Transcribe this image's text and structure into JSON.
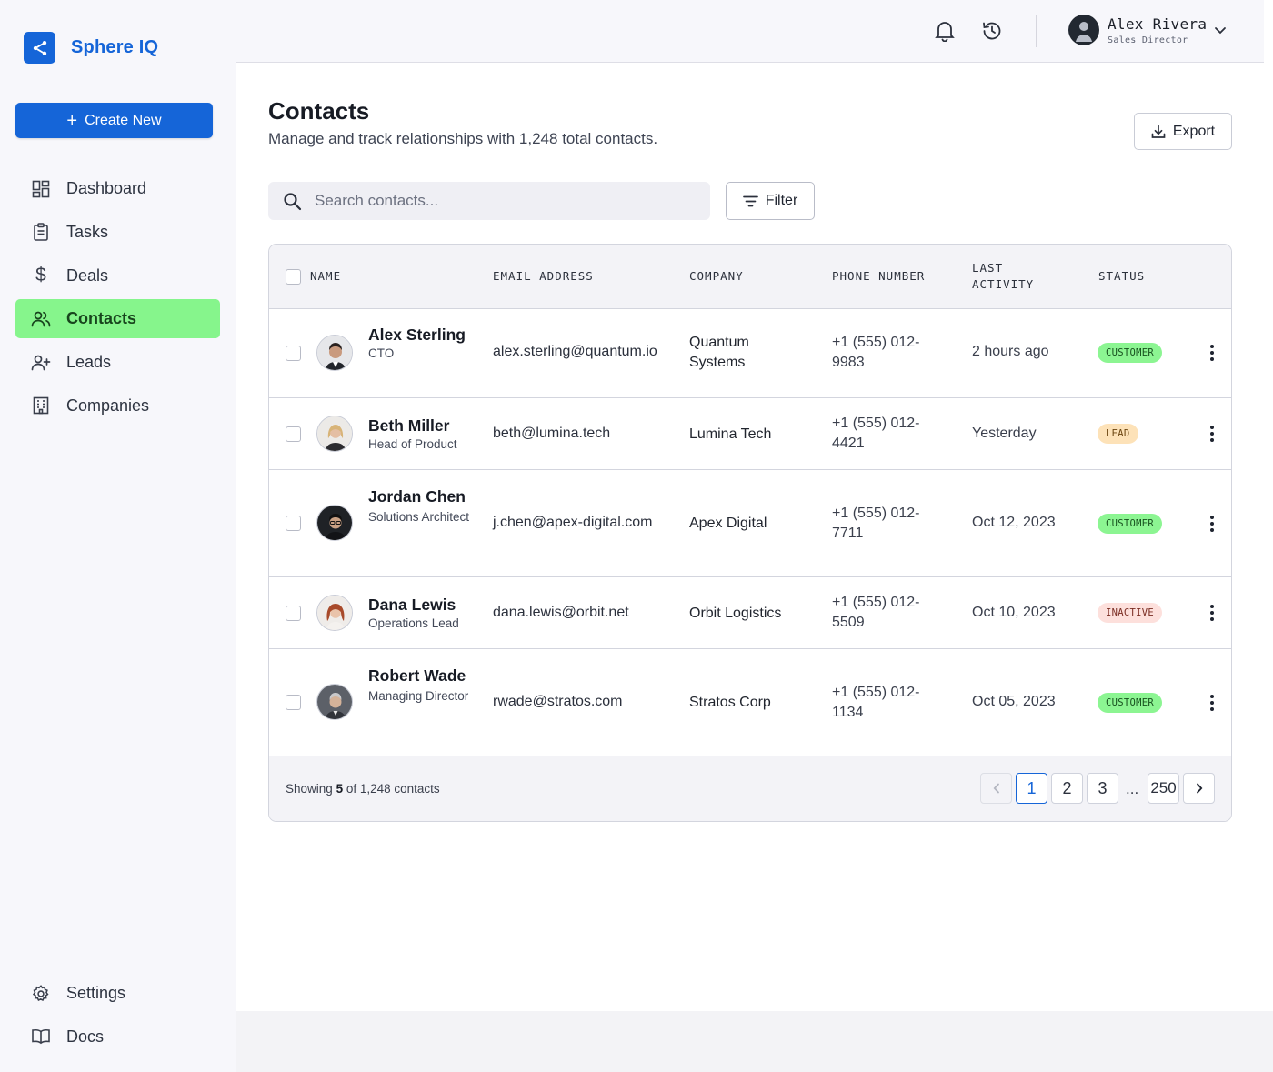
{
  "brand": {
    "name": "Sphere IQ",
    "logo_icon": "share-icon",
    "accent": "#1565d8"
  },
  "sidebar": {
    "create_label": "Create New",
    "items": [
      {
        "label": "Dashboard",
        "icon": "dashboard-icon",
        "active": false
      },
      {
        "label": "Tasks",
        "icon": "clipboard-icon",
        "active": false
      },
      {
        "label": "Deals",
        "icon": "dollar-icon",
        "active": false
      },
      {
        "label": "Contacts",
        "icon": "users-icon",
        "active": true
      },
      {
        "label": "Leads",
        "icon": "user-plus-icon",
        "active": false
      },
      {
        "label": "Companies",
        "icon": "building-icon",
        "active": false
      }
    ],
    "bottom_items": [
      {
        "label": "Settings",
        "icon": "gear-icon"
      },
      {
        "label": "Docs",
        "icon": "book-icon"
      }
    ],
    "active_color": "#86f58c"
  },
  "header": {
    "user_name": "Alex Rivera",
    "user_role": "Sales Director",
    "icons": [
      "bell-icon",
      "history-icon",
      "chevron-down-icon"
    ]
  },
  "page": {
    "title": "Contacts",
    "subtitle": "Manage and track relationships with 1,248 total contacts.",
    "export_label": "Export",
    "search_placeholder": "Search contacts...",
    "filter_label": "Filter"
  },
  "table": {
    "columns": {
      "name": "NAME",
      "email": "EMAIL ADDRESS",
      "company": "COMPANY",
      "phone": "PHONE NUMBER",
      "last_activity": "LAST ACTIVITY",
      "status": "STATUS"
    },
    "rows": [
      {
        "name": "Alex Sterling",
        "role": "CTO",
        "email": "alex.sterling@quantum.io",
        "company": "Quantum Systems",
        "phone": "+1 (555) 012-9983",
        "activity": "2 hours ago",
        "status": "CUSTOMER",
        "status_type": "customer"
      },
      {
        "name": "Beth Miller",
        "role": "Head of Product",
        "email": "beth@lumina.tech",
        "company": "Lumina Tech",
        "phone": "+1 (555) 012-4421",
        "activity": "Yesterday",
        "status": "LEAD",
        "status_type": "lead"
      },
      {
        "name": "Jordan Chen",
        "role": "Solutions Architect",
        "email": "j.chen@apex-digital.com",
        "company": "Apex Digital",
        "phone": "+1 (555) 012-7711",
        "activity": "Oct 12, 2023",
        "status": "CUSTOMER",
        "status_type": "customer"
      },
      {
        "name": "Dana Lewis",
        "role": "Operations Lead",
        "email": "dana.lewis@orbit.net",
        "company": "Orbit Logistics",
        "phone": "+1 (555) 012-5509",
        "activity": "Oct 10, 2023",
        "status": "INACTIVE",
        "status_type": "inactive"
      },
      {
        "name": "Robert Wade",
        "role": "Managing Director",
        "email": "rwade@stratos.com",
        "company": "Stratos Corp",
        "phone": "+1 (555) 012-1134",
        "activity": "Oct 05, 2023",
        "status": "CUSTOMER",
        "status_type": "customer"
      }
    ]
  },
  "footer": {
    "showing_prefix": "Showing",
    "showing_count": "5",
    "showing_suffix": "of 1,248 contacts",
    "pages": [
      "1",
      "2",
      "3",
      "250"
    ],
    "ellipsis": "...",
    "current_page": "1"
  }
}
